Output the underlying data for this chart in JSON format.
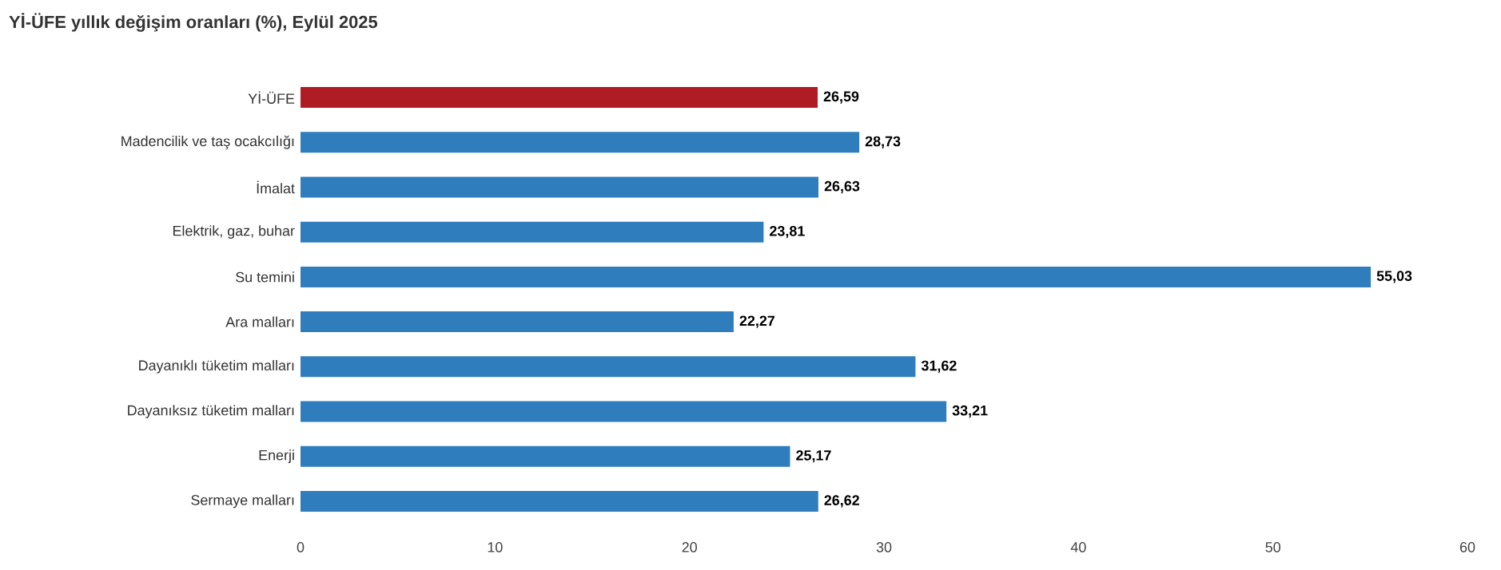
{
  "chart_data": {
    "type": "bar",
    "orientation": "horizontal",
    "title": "Yİ-ÜFE yıllık değişim oranları (%), Eylül 2025",
    "categories": [
      "Yİ-ÜFE",
      "Madencilik ve taş ocakcılığı",
      "İmalat",
      "Elektrik, gaz, buhar",
      "Su temini",
      "Ara malları",
      "Dayanıklı tüketim malları",
      "Dayanıksız tüketim malları",
      "Enerji",
      "Sermaye malları"
    ],
    "values": [
      26.59,
      28.73,
      26.63,
      23.81,
      55.03,
      22.27,
      31.62,
      33.21,
      25.17,
      26.62
    ],
    "value_labels": [
      "26,59",
      "28,73",
      "26,63",
      "23,81",
      "55,03",
      "22,27",
      "31,62",
      "33,21",
      "25,17",
      "26,62"
    ],
    "colors": [
      "#b01c23",
      "#2f7dbd",
      "#2f7dbd",
      "#2f7dbd",
      "#2f7dbd",
      "#2f7dbd",
      "#2f7dbd",
      "#2f7dbd",
      "#2f7dbd",
      "#2f7dbd"
    ],
    "xlim": [
      0,
      60
    ],
    "xticks": [
      0,
      10,
      20,
      30,
      40,
      50,
      60
    ],
    "grid": false
  }
}
